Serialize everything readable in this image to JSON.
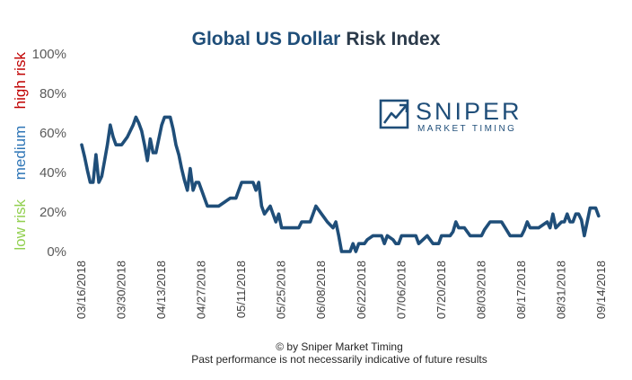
{
  "chart_data": {
    "type": "line",
    "title_part1": "Global US Dollar",
    "title_part2": "Risk Index",
    "y_ticks": [
      "0%",
      "20%",
      "40%",
      "60%",
      "80%",
      "100%"
    ],
    "ylim": [
      0,
      100
    ],
    "grid": false,
    "risk_bands": {
      "low": "low risk",
      "medium": "medium",
      "high": "high risk"
    },
    "x_ticks": [
      "03/16/2018",
      "03/30/2018",
      "04/13/2018",
      "04/27/2018",
      "05/11/2018",
      "05/25/2018",
      "06/08/2018",
      "06/22/2018",
      "07/06/2018",
      "07/20/2018",
      "08/03/2018",
      "08/17/2018",
      "08/31/2018",
      "09/14/2018"
    ],
    "x_start": "03/16/2018",
    "x_end": "09/14/2018",
    "series": [
      {
        "color": "#1f4e79",
        "points": [
          [
            "03/16/2018",
            54
          ],
          [
            "03/17/2018",
            48
          ],
          [
            "03/18/2018",
            41
          ],
          [
            "03/19/2018",
            35
          ],
          [
            "03/20/2018",
            35
          ],
          [
            "03/21/2018",
            49
          ],
          [
            "03/22/2018",
            35
          ],
          [
            "03/23/2018",
            38
          ],
          [
            "03/24/2018",
            46
          ],
          [
            "03/25/2018",
            54
          ],
          [
            "03/26/2018",
            64
          ],
          [
            "03/27/2018",
            58
          ],
          [
            "03/28/2018",
            54
          ],
          [
            "03/30/2018",
            54
          ],
          [
            "04/01/2018",
            58
          ],
          [
            "04/03/2018",
            64
          ],
          [
            "04/04/2018",
            68
          ],
          [
            "04/05/2018",
            65
          ],
          [
            "04/06/2018",
            61
          ],
          [
            "04/07/2018",
            54
          ],
          [
            "04/08/2018",
            46
          ],
          [
            "04/09/2018",
            57
          ],
          [
            "04/10/2018",
            50
          ],
          [
            "04/11/2018",
            50
          ],
          [
            "04/12/2018",
            57
          ],
          [
            "04/13/2018",
            64
          ],
          [
            "04/14/2018",
            68
          ],
          [
            "04/16/2018",
            68
          ],
          [
            "04/17/2018",
            62
          ],
          [
            "04/18/2018",
            54
          ],
          [
            "04/19/2018",
            49
          ],
          [
            "04/20/2018",
            42
          ],
          [
            "04/21/2018",
            36
          ],
          [
            "04/22/2018",
            31
          ],
          [
            "04/23/2018",
            42
          ],
          [
            "04/24/2018",
            31
          ],
          [
            "04/25/2018",
            35
          ],
          [
            "04/26/2018",
            35
          ],
          [
            "04/27/2018",
            31
          ],
          [
            "04/28/2018",
            27
          ],
          [
            "04/29/2018",
            23
          ],
          [
            "05/03/2018",
            23
          ],
          [
            "05/05/2018",
            25
          ],
          [
            "05/07/2018",
            27
          ],
          [
            "05/09/2018",
            27
          ],
          [
            "05/10/2018",
            31
          ],
          [
            "05/11/2018",
            35
          ],
          [
            "05/15/2018",
            35
          ],
          [
            "05/16/2018",
            31
          ],
          [
            "05/17/2018",
            35
          ],
          [
            "05/18/2018",
            23
          ],
          [
            "05/19/2018",
            19
          ],
          [
            "05/20/2018",
            21
          ],
          [
            "05/21/2018",
            23
          ],
          [
            "05/22/2018",
            19
          ],
          [
            "05/23/2018",
            15
          ],
          [
            "05/24/2018",
            19
          ],
          [
            "05/25/2018",
            12
          ],
          [
            "05/31/2018",
            12
          ],
          [
            "06/01/2018",
            15
          ],
          [
            "06/03/2018",
            15
          ],
          [
            "06/04/2018",
            15
          ],
          [
            "06/05/2018",
            19
          ],
          [
            "06/06/2018",
            23
          ],
          [
            "06/08/2018",
            19
          ],
          [
            "06/09/2018",
            17
          ],
          [
            "06/10/2018",
            15
          ],
          [
            "06/12/2018",
            12
          ],
          [
            "06/13/2018",
            15
          ],
          [
            "06/14/2018",
            8
          ],
          [
            "06/15/2018",
            0
          ],
          [
            "06/18/2018",
            0
          ],
          [
            "06/19/2018",
            4
          ],
          [
            "06/20/2018",
            0
          ],
          [
            "06/21/2018",
            4
          ],
          [
            "06/23/2018",
            4
          ],
          [
            "06/24/2018",
            6
          ],
          [
            "06/26/2018",
            8
          ],
          [
            "06/29/2018",
            8
          ],
          [
            "06/30/2018",
            4
          ],
          [
            "07/01/2018",
            8
          ],
          [
            "07/03/2018",
            6
          ],
          [
            "07/04/2018",
            4
          ],
          [
            "07/05/2018",
            4
          ],
          [
            "07/06/2018",
            8
          ],
          [
            "07/11/2018",
            8
          ],
          [
            "07/12/2018",
            4
          ],
          [
            "07/15/2018",
            8
          ],
          [
            "07/17/2018",
            4
          ],
          [
            "07/19/2018",
            4
          ],
          [
            "07/20/2018",
            8
          ],
          [
            "07/23/2018",
            8
          ],
          [
            "07/24/2018",
            10
          ],
          [
            "07/25/2018",
            15
          ],
          [
            "07/26/2018",
            12
          ],
          [
            "07/28/2018",
            12
          ],
          [
            "07/30/2018",
            8
          ],
          [
            "08/03/2018",
            8
          ],
          [
            "08/04/2018",
            11
          ],
          [
            "08/06/2018",
            15
          ],
          [
            "08/10/2018",
            15
          ],
          [
            "08/13/2018",
            8
          ],
          [
            "08/17/2018",
            8
          ],
          [
            "08/18/2018",
            11
          ],
          [
            "08/19/2018",
            15
          ],
          [
            "08/20/2018",
            12
          ],
          [
            "08/23/2018",
            12
          ],
          [
            "08/26/2018",
            15
          ],
          [
            "08/27/2018",
            12
          ],
          [
            "08/28/2018",
            19
          ],
          [
            "08/29/2018",
            12
          ],
          [
            "08/31/2018",
            15
          ],
          [
            "09/01/2018",
            15
          ],
          [
            "09/02/2018",
            19
          ],
          [
            "09/03/2018",
            15
          ],
          [
            "09/04/2018",
            15
          ],
          [
            "09/05/2018",
            19
          ],
          [
            "09/06/2018",
            19
          ],
          [
            "09/07/2018",
            16
          ],
          [
            "09/08/2018",
            8
          ],
          [
            "09/09/2018",
            15
          ],
          [
            "09/10/2018",
            22
          ],
          [
            "09/12/2018",
            22
          ],
          [
            "09/13/2018",
            18
          ]
        ]
      }
    ]
  },
  "logo": {
    "name": "SNIPER",
    "tagline": "MARKET TIMING",
    "color": "#1f4e79"
  },
  "footer": {
    "line1": "© by Sniper Market Timing",
    "line2": "Past performance is not necessarily indicative of future results"
  },
  "colors": {
    "line": "#1f4e79",
    "low": "#92d050",
    "medium": "#2e75b6",
    "high": "#c00000"
  }
}
